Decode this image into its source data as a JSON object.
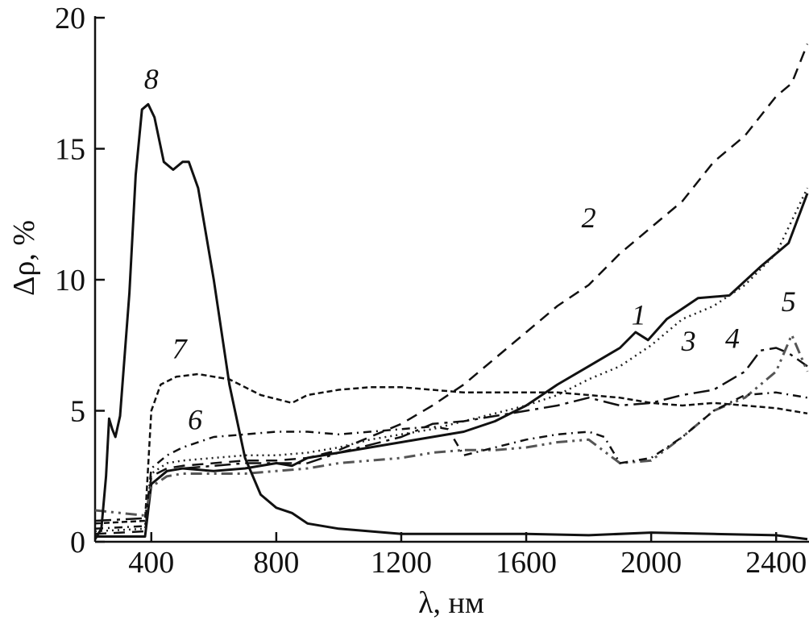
{
  "chart_data": {
    "type": "line",
    "title": "",
    "xlabel": "λ, нм",
    "ylabel": "Δρ, %",
    "xlim": [
      220,
      2500
    ],
    "ylim": [
      0,
      20
    ],
    "xticks": [
      400,
      800,
      1200,
      1600,
      2000,
      2400
    ],
    "yticks": [
      0,
      5,
      10,
      15,
      20
    ],
    "xtick_labels": [
      "400",
      "800",
      "1200",
      "1600",
      "2000",
      "2400"
    ],
    "ytick_labels": [
      "0",
      "5",
      "10",
      "15",
      "20"
    ],
    "grid": false,
    "legend": "none",
    "series": [
      {
        "label": "1",
        "label_at": [
          1960,
          8.3
        ],
        "style": {
          "color": "#111111",
          "dash": "",
          "width": 3
        },
        "points": [
          [
            220,
            0.2
          ],
          [
            380,
            0.2
          ],
          [
            400,
            2.2
          ],
          [
            450,
            2.7
          ],
          [
            500,
            2.8
          ],
          [
            600,
            2.7
          ],
          [
            700,
            2.8
          ],
          [
            800,
            3.0
          ],
          [
            850,
            2.9
          ],
          [
            900,
            3.2
          ],
          [
            1000,
            3.4
          ],
          [
            1100,
            3.6
          ],
          [
            1200,
            3.8
          ],
          [
            1300,
            4.0
          ],
          [
            1400,
            4.2
          ],
          [
            1500,
            4.6
          ],
          [
            1600,
            5.2
          ],
          [
            1700,
            6.0
          ],
          [
            1800,
            6.7
          ],
          [
            1900,
            7.4
          ],
          [
            1950,
            8.0
          ],
          [
            1990,
            7.7
          ],
          [
            2050,
            8.5
          ],
          [
            2150,
            9.3
          ],
          [
            2250,
            9.4
          ],
          [
            2350,
            10.5
          ],
          [
            2440,
            11.4
          ],
          [
            2500,
            13.3
          ]
        ]
      },
      {
        "label": "2",
        "label_at": [
          1800,
          12.0
        ],
        "style": {
          "color": "#111111",
          "dash": "14,9",
          "width": 2.5
        },
        "points": [
          [
            220,
            0.3
          ],
          [
            380,
            0.4
          ],
          [
            400,
            2.5
          ],
          [
            450,
            2.8
          ],
          [
            500,
            2.9
          ],
          [
            600,
            3.0
          ],
          [
            700,
            3.1
          ],
          [
            800,
            3.1
          ],
          [
            900,
            3.2
          ],
          [
            1000,
            3.5
          ],
          [
            1100,
            4.0
          ],
          [
            1200,
            4.5
          ],
          [
            1300,
            5.2
          ],
          [
            1400,
            6.0
          ],
          [
            1500,
            7.0
          ],
          [
            1600,
            8.0
          ],
          [
            1700,
            9.0
          ],
          [
            1800,
            9.8
          ],
          [
            1900,
            11.0
          ],
          [
            2000,
            12.0
          ],
          [
            2100,
            13.0
          ],
          [
            2200,
            14.5
          ],
          [
            2300,
            15.5
          ],
          [
            2400,
            17.0
          ],
          [
            2450,
            17.5
          ],
          [
            2500,
            19.0
          ]
        ]
      },
      {
        "label": "3",
        "label_at": [
          2120,
          7.3
        ],
        "style": {
          "color": "#222222",
          "dash": "2,5",
          "width": 2.5
        },
        "points": [
          [
            220,
            0.4
          ],
          [
            380,
            0.5
          ],
          [
            400,
            2.6
          ],
          [
            450,
            3.0
          ],
          [
            500,
            3.1
          ],
          [
            600,
            3.2
          ],
          [
            700,
            3.3
          ],
          [
            800,
            3.3
          ],
          [
            900,
            3.4
          ],
          [
            1000,
            3.6
          ],
          [
            1100,
            3.9
          ],
          [
            1200,
            4.1
          ],
          [
            1300,
            4.3
          ],
          [
            1400,
            4.6
          ],
          [
            1500,
            4.9
          ],
          [
            1600,
            5.2
          ],
          [
            1700,
            5.6
          ],
          [
            1800,
            6.2
          ],
          [
            1900,
            6.7
          ],
          [
            2000,
            7.5
          ],
          [
            2100,
            8.5
          ],
          [
            2200,
            9.0
          ],
          [
            2300,
            9.8
          ],
          [
            2400,
            11.0
          ],
          [
            2500,
            13.5
          ]
        ]
      },
      {
        "label": "4",
        "label_at": [
          2260,
          7.4
        ],
        "style": {
          "color": "#111111",
          "dash": "20,7,4,7",
          "width": 2.5
        },
        "points": [
          [
            220,
            0.8
          ],
          [
            380,
            0.9
          ],
          [
            400,
            2.2
          ],
          [
            450,
            2.7
          ],
          [
            500,
            2.8
          ],
          [
            600,
            2.9
          ],
          [
            700,
            3.0
          ],
          [
            800,
            3.0
          ],
          [
            900,
            3.0
          ],
          [
            1000,
            3.4
          ],
          [
            1100,
            3.7
          ],
          [
            1200,
            4.0
          ],
          [
            1300,
            4.5
          ],
          [
            1400,
            4.6
          ],
          [
            1500,
            4.8
          ],
          [
            1600,
            5.0
          ],
          [
            1700,
            5.2
          ],
          [
            1800,
            5.5
          ],
          [
            1900,
            5.2
          ],
          [
            2000,
            5.3
          ],
          [
            2100,
            5.6
          ],
          [
            2200,
            5.8
          ],
          [
            2300,
            6.5
          ],
          [
            2350,
            7.3
          ],
          [
            2400,
            7.4
          ],
          [
            2440,
            7.2
          ],
          [
            2500,
            6.7
          ]
        ]
      },
      {
        "label": "5",
        "label_at": [
          2440,
          8.8
        ],
        "style": {
          "color": "#555555",
          "dash": "14,6,3,6,3,6",
          "width": 3
        },
        "points": [
          [
            220,
            1.2
          ],
          [
            380,
            1.0
          ],
          [
            400,
            2.1
          ],
          [
            450,
            2.5
          ],
          [
            500,
            2.6
          ],
          [
            600,
            2.6
          ],
          [
            700,
            2.6
          ],
          [
            800,
            2.7
          ],
          [
            900,
            2.8
          ],
          [
            1000,
            3.0
          ],
          [
            1100,
            3.1
          ],
          [
            1200,
            3.2
          ],
          [
            1300,
            3.4
          ],
          [
            1400,
            3.5
          ],
          [
            1500,
            3.5
          ],
          [
            1600,
            3.6
          ],
          [
            1700,
            3.8
          ],
          [
            1800,
            3.9
          ],
          [
            1900,
            3.0
          ],
          [
            2000,
            3.1
          ],
          [
            2100,
            4.0
          ],
          [
            2200,
            5.0
          ],
          [
            2300,
            5.5
          ],
          [
            2400,
            6.5
          ],
          [
            2450,
            7.9
          ],
          [
            2500,
            6.5
          ]
        ]
      },
      {
        "label": "6",
        "label_at": [
          540,
          4.3
        ],
        "style": {
          "color": "#111111",
          "dash": "10,6,2,6",
          "width": 2.5
        },
        "points": [
          [
            220,
            0.5
          ],
          [
            380,
            0.6
          ],
          [
            400,
            2.8
          ],
          [
            450,
            3.3
          ],
          [
            500,
            3.6
          ],
          [
            600,
            4.0
          ],
          [
            700,
            4.1
          ],
          [
            800,
            4.2
          ],
          [
            900,
            4.2
          ],
          [
            1000,
            4.1
          ],
          [
            1100,
            4.2
          ],
          [
            1200,
            4.3
          ],
          [
            1300,
            4.4
          ],
          [
            1350,
            4.3
          ],
          [
            1400,
            3.3
          ],
          [
            1500,
            3.6
          ],
          [
            1600,
            3.9
          ],
          [
            1700,
            4.1
          ],
          [
            1800,
            4.2
          ],
          [
            1850,
            4.0
          ],
          [
            1900,
            3.0
          ],
          [
            2000,
            3.2
          ],
          [
            2100,
            4.0
          ],
          [
            2200,
            5.0
          ],
          [
            2300,
            5.6
          ],
          [
            2400,
            5.7
          ],
          [
            2450,
            5.6
          ],
          [
            2500,
            5.5
          ]
        ]
      },
      {
        "label": "7",
        "label_at": [
          490,
          7.0
        ],
        "style": {
          "color": "#111111",
          "dash": "7,4",
          "width": 2.5
        },
        "points": [
          [
            220,
            0.7
          ],
          [
            380,
            0.8
          ],
          [
            400,
            5.0
          ],
          [
            430,
            6.0
          ],
          [
            480,
            6.3
          ],
          [
            550,
            6.4
          ],
          [
            650,
            6.2
          ],
          [
            750,
            5.6
          ],
          [
            850,
            5.3
          ],
          [
            900,
            5.6
          ],
          [
            1000,
            5.8
          ],
          [
            1100,
            5.9
          ],
          [
            1200,
            5.9
          ],
          [
            1300,
            5.8
          ],
          [
            1400,
            5.7
          ],
          [
            1500,
            5.7
          ],
          [
            1600,
            5.7
          ],
          [
            1700,
            5.7
          ],
          [
            1800,
            5.6
          ],
          [
            1900,
            5.5
          ],
          [
            2000,
            5.3
          ],
          [
            2100,
            5.2
          ],
          [
            2200,
            5.3
          ],
          [
            2300,
            5.2
          ],
          [
            2400,
            5.1
          ],
          [
            2500,
            4.9
          ]
        ]
      },
      {
        "label": "8",
        "label_at": [
          400,
          17.3
        ],
        "style": {
          "color": "#111111",
          "dash": "",
          "width": 3
        },
        "points": [
          [
            220,
            0.1
          ],
          [
            240,
            0.5
          ],
          [
            255,
            2.5
          ],
          [
            265,
            4.7
          ],
          [
            275,
            4.3
          ],
          [
            285,
            4.0
          ],
          [
            300,
            4.8
          ],
          [
            330,
            9.5
          ],
          [
            350,
            14.0
          ],
          [
            370,
            16.5
          ],
          [
            390,
            16.7
          ],
          [
            410,
            16.2
          ],
          [
            440,
            14.5
          ],
          [
            470,
            14.2
          ],
          [
            500,
            14.5
          ],
          [
            520,
            14.5
          ],
          [
            550,
            13.5
          ],
          [
            600,
            10.0
          ],
          [
            650,
            6.0
          ],
          [
            700,
            3.2
          ],
          [
            750,
            1.8
          ],
          [
            800,
            1.3
          ],
          [
            850,
            1.1
          ],
          [
            900,
            0.7
          ],
          [
            1000,
            0.5
          ],
          [
            1200,
            0.3
          ],
          [
            1400,
            0.3
          ],
          [
            1600,
            0.3
          ],
          [
            1800,
            0.25
          ],
          [
            2000,
            0.35
          ],
          [
            2200,
            0.3
          ],
          [
            2400,
            0.25
          ],
          [
            2500,
            0.1
          ]
        ]
      }
    ]
  }
}
